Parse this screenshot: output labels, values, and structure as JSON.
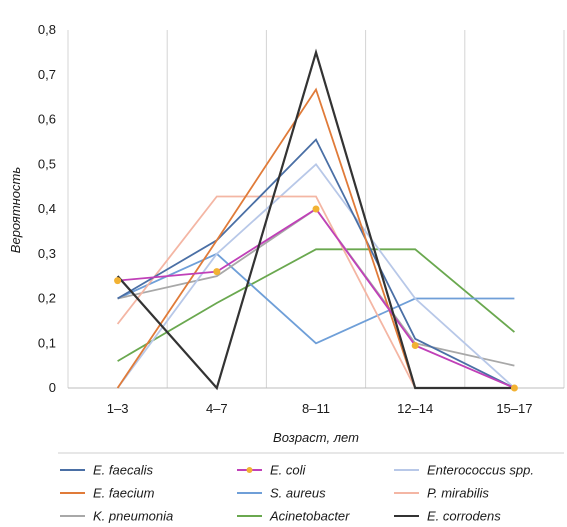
{
  "chart_data": {
    "type": "line",
    "xlabel": "Возраст, лет",
    "ylabel": "Вероятность",
    "categories": [
      "1–3",
      "4–7",
      "8–11",
      "12–14",
      "15–17"
    ],
    "ylim": [
      0,
      0.8
    ],
    "yticks": [
      "0",
      "0,1",
      "0,2",
      "0,3",
      "0,4",
      "0,5",
      "0,6",
      "0,7",
      "0,8"
    ],
    "grid": "vertical",
    "legend_position": "bottom",
    "series": [
      {
        "name": "E. faecalis",
        "color": "#4a6fa5",
        "values": [
          0.2,
          0.33,
          0.555,
          0.11,
          0.0
        ]
      },
      {
        "name": "E. faecium",
        "color": "#e07b39",
        "values": [
          0.0,
          0.33,
          0.667,
          0.0,
          0.0
        ]
      },
      {
        "name": "K. pneumonia",
        "color": "#a8a8a8",
        "values": [
          0.2,
          0.25,
          0.4,
          0.1,
          0.05
        ]
      },
      {
        "name": "E. coli",
        "color": "#c040b8",
        "marker_color": "#f2b233",
        "values": [
          0.24,
          0.26,
          0.4,
          0.095,
          0.0
        ]
      },
      {
        "name": "S. aureus",
        "color": "#6f9fd8",
        "values": [
          0.2,
          0.3,
          0.1,
          0.2,
          0.2
        ]
      },
      {
        "name": "Acinetobacter",
        "color": "#6aa84f",
        "values": [
          0.06,
          0.19,
          0.31,
          0.31,
          0.125
        ]
      },
      {
        "name": "Enterococcus spp.",
        "color": "#b8c8e8",
        "values": [
          0.0,
          0.3,
          0.5,
          0.2,
          0.0
        ]
      },
      {
        "name": "P. mirabilis",
        "color": "#f4b6a4",
        "values": [
          0.143,
          0.428,
          0.428,
          0.0,
          0.0
        ]
      },
      {
        "name": "E. corrodens",
        "color": "#333333",
        "values": [
          0.25,
          0.0,
          0.75,
          0.0,
          0.0
        ]
      }
    ],
    "legend_order": [
      "E. faecalis",
      "E. coli",
      "Enterococcus spp.",
      "E. faecium",
      "S. aureus",
      "P. mirabilis",
      "K. pneumonia",
      "Acinetobacter",
      "E. corrodens"
    ]
  }
}
